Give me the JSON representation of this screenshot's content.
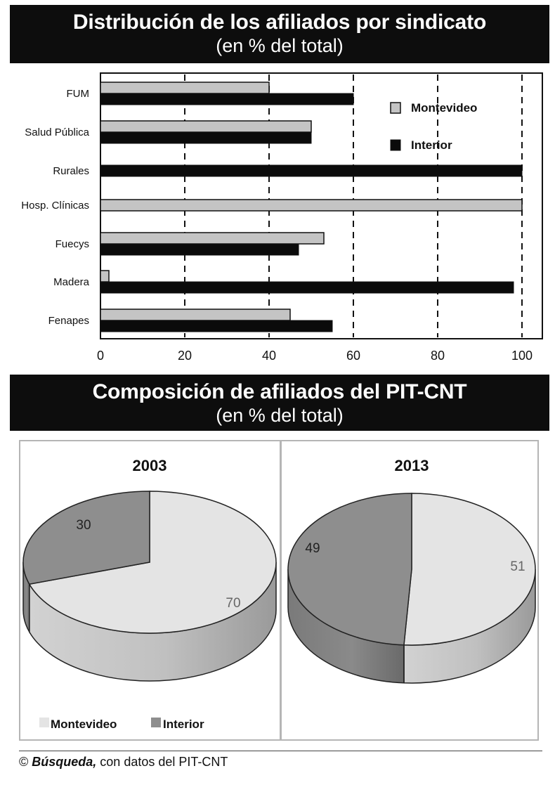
{
  "header1": {
    "title": "Distribución de los afiliados por sindicato",
    "subtitle": "(en % del total)"
  },
  "header2": {
    "title": "Composición de afiliados del PIT-CNT",
    "subtitle": "(en % del total)"
  },
  "footer": {
    "symbol": "©",
    "brand": "Búsqueda,",
    "text": " con datos del PIT-CNT"
  },
  "colors": {
    "montevideo_bar": "#c4c4c4",
    "interior_bar": "#0b0b0b",
    "montevideo_pie": "#e4e4e4",
    "interior_pie": "#8e8e8e"
  },
  "chart_data": [
    {
      "type": "bar",
      "orientation": "horizontal",
      "categories": [
        "FUM",
        "Salud Pública",
        "Rurales",
        "Hosp. Clínicas",
        "Fuecys",
        "Madera",
        "Fenapes"
      ],
      "series": [
        {
          "name": "Montevideo",
          "values": [
            40,
            50,
            0,
            100,
            53,
            2,
            45
          ]
        },
        {
          "name": "Interior",
          "values": [
            60,
            50,
            100,
            0,
            47,
            98,
            55
          ]
        }
      ],
      "xlim": [
        0,
        100
      ],
      "xticks": [
        "0",
        "20",
        "40",
        "60",
        "80",
        "100"
      ],
      "grid": "vertical dashed",
      "legend": "top-right"
    },
    {
      "type": "pie",
      "title": "2003",
      "labels": [
        "Montevideo",
        "Interior"
      ],
      "values": [
        70,
        30
      ],
      "value_labels": [
        "70",
        "30"
      ]
    },
    {
      "type": "pie",
      "title": "2013",
      "labels": [
        "Montevideo",
        "Interior"
      ],
      "values": [
        51,
        49
      ],
      "value_labels": [
        "51",
        "49"
      ]
    }
  ],
  "pie_legend": [
    "Montevideo",
    "Interior"
  ]
}
